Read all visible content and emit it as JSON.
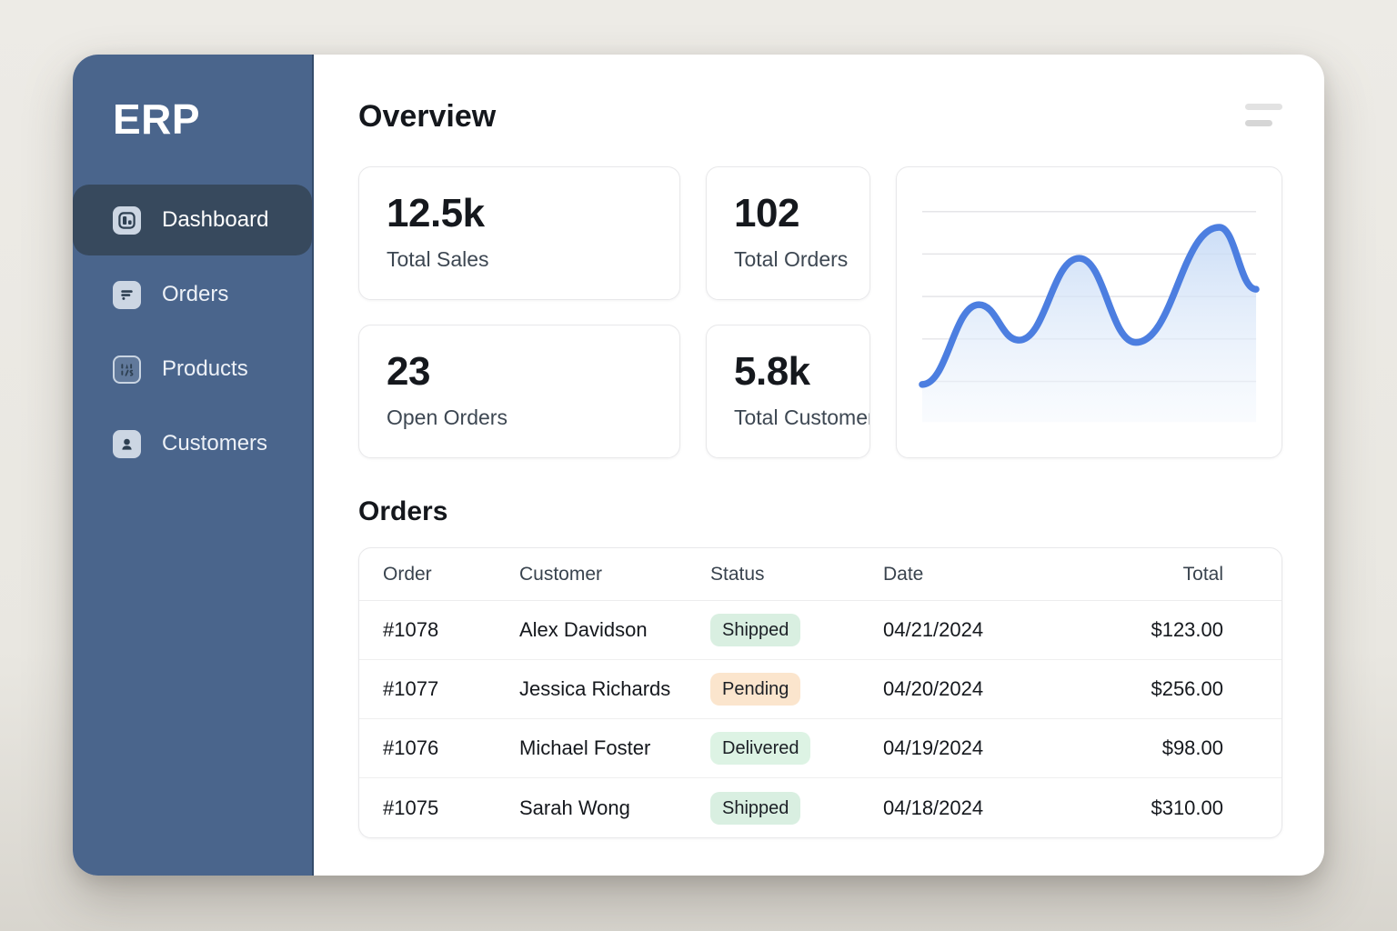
{
  "app": {
    "logo": "ERP"
  },
  "sidebar": {
    "items": [
      {
        "label": "Dashboard",
        "icon": "dashboard-icon",
        "active": true
      },
      {
        "label": "Orders",
        "icon": "orders-icon",
        "active": false
      },
      {
        "label": "Products",
        "icon": "products-icon",
        "active": false
      },
      {
        "label": "Customers",
        "icon": "customers-icon",
        "active": false
      }
    ]
  },
  "header": {
    "title": "Overview",
    "menu_icon": "menu-icon"
  },
  "stats": [
    {
      "value": "12.5k",
      "label": "Total Sales"
    },
    {
      "value": "102",
      "label": "Total Orders"
    },
    {
      "value": "23",
      "label": "Open Orders"
    },
    {
      "value": "5.8k",
      "label": "Total Customers"
    }
  ],
  "chart_data": {
    "type": "area",
    "title": "",
    "xlabel": "",
    "ylabel": "",
    "x": [
      0,
      0.17,
      0.29,
      0.47,
      0.64,
      0.89,
      1.0
    ],
    "values": [
      17,
      53,
      37,
      74,
      36,
      88,
      60
    ],
    "ylim": [
      0,
      100
    ],
    "grid": true,
    "gridline_count": 5,
    "legend": false,
    "tick_labels": false,
    "line_color": "#4c7ee0",
    "fill_top_color": "#c3d8f5",
    "fill_bottom_color": "#f2f7fd",
    "gridline_color": "#e5e5e8"
  },
  "orders": {
    "title": "Orders",
    "columns": [
      "Order",
      "Customer",
      "Status",
      "Date",
      "Total"
    ],
    "rows": [
      {
        "order_id": "#1078",
        "customer": "Alex Davidson",
        "status": "Shipped",
        "status_type": "shipped",
        "date": "04/21/2024",
        "total": "$123.00"
      },
      {
        "order_id": "#1077",
        "customer": "Jessica Richards",
        "status": "Pending",
        "status_type": "pending",
        "date": "04/20/2024",
        "total": "$256.00"
      },
      {
        "order_id": "#1076",
        "customer": "Michael Foster",
        "status": "Delivered",
        "status_type": "delivered",
        "date": "04/19/2024",
        "total": "$98.00"
      },
      {
        "order_id": "#1075",
        "customer": "Sarah Wong",
        "status": "Shipped",
        "status_type": "shipped",
        "date": "04/18/2024",
        "total": "$310.00"
      }
    ]
  },
  "colors": {
    "sidebar_bg": "#4a658c",
    "sidebar_active_bg": "#37495d",
    "accent_line": "#4c7ee0",
    "status_shipped_bg": "#d9efe1",
    "status_delivered_bg": "#ddf3e4",
    "status_pending_bg": "#fbe5cd",
    "page_bg": "#e9e7e1"
  }
}
